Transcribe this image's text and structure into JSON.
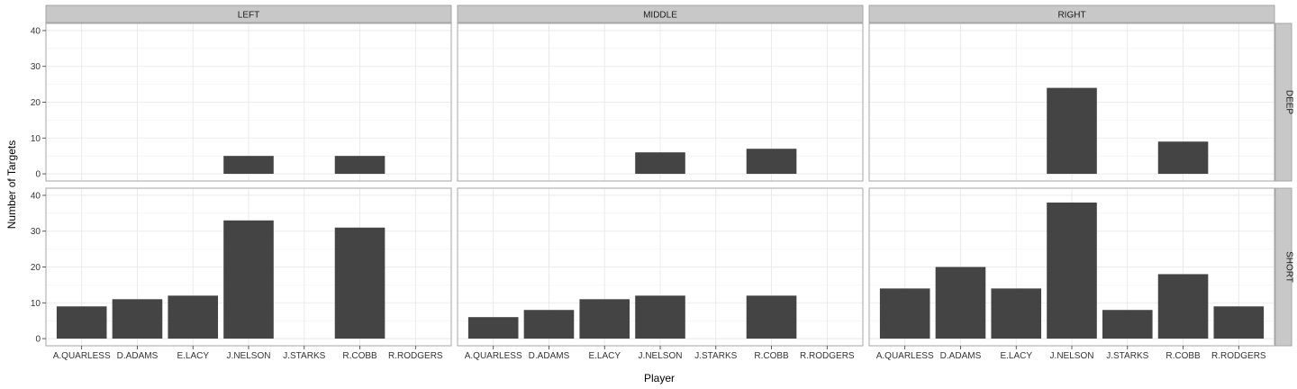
{
  "chart_data": {
    "type": "bar",
    "xlabel": "Player",
    "ylabel": "Number of Targets",
    "ylim": [
      0,
      40
    ],
    "yticks": [
      0,
      10,
      20,
      30,
      40
    ],
    "grid": true,
    "categories": [
      "A.QUARLESS",
      "D.ADAMS",
      "E.LACY",
      "J.NELSON",
      "J.STARKS",
      "R.COBB",
      "R.RODGERS"
    ],
    "column_facets": [
      "LEFT",
      "MIDDLE",
      "RIGHT"
    ],
    "row_facets": [
      "DEEP",
      "SHORT"
    ],
    "bar_color": "#444444",
    "panels": [
      {
        "col": "LEFT",
        "row": "DEEP",
        "values": [
          null,
          null,
          null,
          5,
          null,
          5,
          null
        ]
      },
      {
        "col": "MIDDLE",
        "row": "DEEP",
        "values": [
          null,
          null,
          null,
          6,
          null,
          7,
          null
        ]
      },
      {
        "col": "RIGHT",
        "row": "DEEP",
        "values": [
          null,
          null,
          null,
          24,
          null,
          9,
          null
        ]
      },
      {
        "col": "LEFT",
        "row": "SHORT",
        "values": [
          9,
          11,
          12,
          33,
          null,
          31,
          null
        ]
      },
      {
        "col": "MIDDLE",
        "row": "SHORT",
        "values": [
          6,
          8,
          11,
          12,
          null,
          12,
          null
        ]
      },
      {
        "col": "RIGHT",
        "row": "SHORT",
        "values": [
          14,
          20,
          14,
          38,
          8,
          18,
          9
        ]
      }
    ]
  }
}
